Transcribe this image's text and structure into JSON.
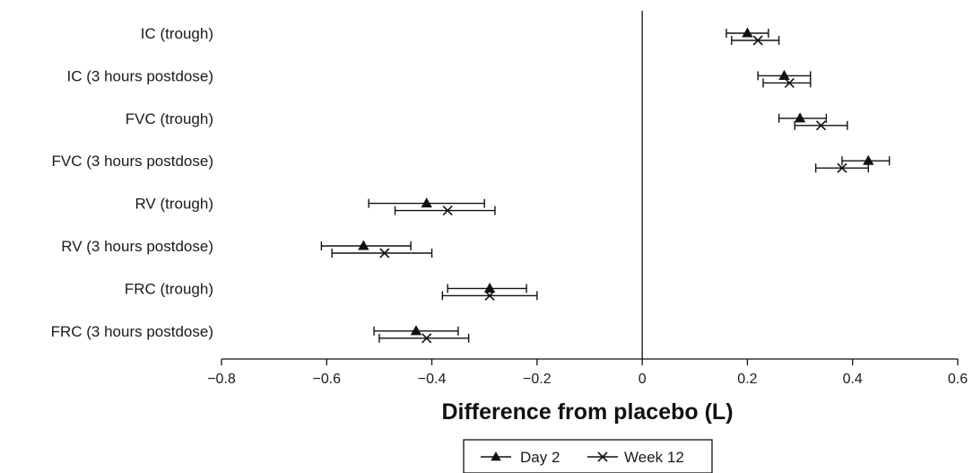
{
  "chart_data": {
    "type": "forest",
    "title": "",
    "xlabel": "Difference from placebo (L)",
    "ylabel": "",
    "xlim": [
      -0.8,
      0.6
    ],
    "xticks": [
      -0.8,
      -0.6,
      -0.4,
      -0.2,
      0,
      0.2,
      0.4,
      0.6
    ],
    "xtick_labels": [
      "−0.8",
      "−0.6",
      "−0.4",
      "−0.2",
      "0",
      "0.2",
      "0.4",
      "0.6"
    ],
    "grid": false,
    "legend_position": "bottom-center",
    "categories": [
      "IC (trough)",
      "IC (3 hours postdose)",
      "FVC (trough)",
      "FVC (3 hours postdose)",
      "RV (trough)",
      "RV (3 hours postdose)",
      "FRC (trough)",
      "FRC (3 hours postdose)"
    ],
    "series": [
      {
        "name": "Day 2",
        "marker": "filled-triangle",
        "estimates": [
          0.2,
          0.27,
          0.3,
          0.43,
          -0.41,
          -0.53,
          -0.29,
          -0.43
        ],
        "ci_lower": [
          0.16,
          0.22,
          0.26,
          0.38,
          -0.52,
          -0.61,
          -0.37,
          -0.51
        ],
        "ci_upper": [
          0.24,
          0.32,
          0.35,
          0.47,
          -0.3,
          -0.44,
          -0.22,
          -0.35
        ]
      },
      {
        "name": "Week 12",
        "marker": "cross",
        "estimates": [
          0.22,
          0.28,
          0.34,
          0.38,
          -0.37,
          -0.49,
          -0.29,
          -0.41
        ],
        "ci_lower": [
          0.17,
          0.23,
          0.29,
          0.33,
          -0.47,
          -0.59,
          -0.38,
          -0.5
        ],
        "ci_upper": [
          0.26,
          0.32,
          0.39,
          0.43,
          -0.28,
          -0.4,
          -0.2,
          -0.33
        ]
      }
    ]
  },
  "colors": {
    "ink": "#111111"
  }
}
